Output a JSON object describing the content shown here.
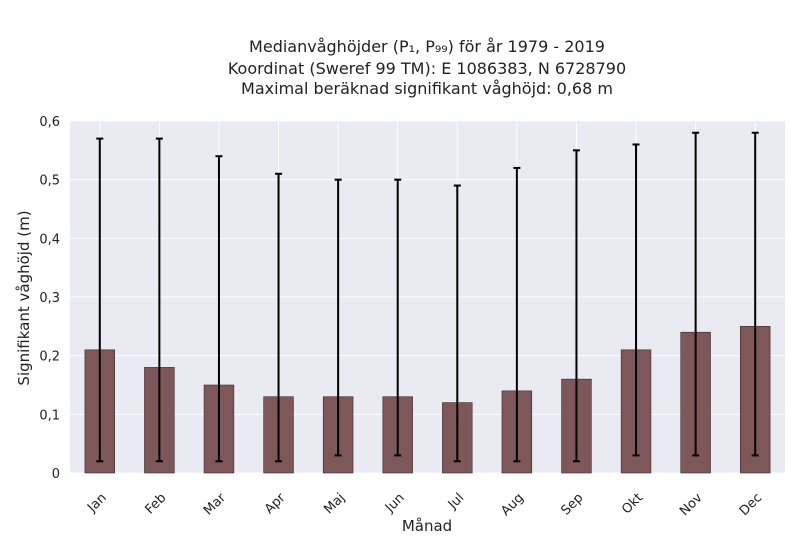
{
  "chart_data": {
    "type": "bar",
    "title_lines": [
      "Medianvåghöjder (P₁, P₉₉) för år 1979 - 2019",
      "Koordinat (Sweref 99 TM): E 1086383, N 6728790",
      "Maximal beräknad signifikant våghöjd: 0,68 m"
    ],
    "xlabel": "Månad",
    "ylabel": "Signifikant våghöjd (m)",
    "categories": [
      "Jan",
      "Feb",
      "Mar",
      "Apr",
      "Maj",
      "Jun",
      "Jul",
      "Aug",
      "Sep",
      "Okt",
      "Nov",
      "Dec"
    ],
    "values": [
      0.21,
      0.18,
      0.15,
      0.13,
      0.13,
      0.13,
      0.12,
      0.14,
      0.16,
      0.21,
      0.24,
      0.25
    ],
    "error_low": [
      0.02,
      0.02,
      0.02,
      0.02,
      0.03,
      0.03,
      0.02,
      0.02,
      0.02,
      0.03,
      0.03,
      0.03
    ],
    "error_high": [
      0.57,
      0.57,
      0.54,
      0.51,
      0.5,
      0.5,
      0.49,
      0.52,
      0.55,
      0.56,
      0.58,
      0.58
    ],
    "ylim": [
      0,
      0.6
    ],
    "yticks": [
      0,
      0.1,
      0.2,
      0.3,
      0.4,
      0.5,
      0.6
    ],
    "ytick_labels": [
      "0",
      "0,1",
      "0,2",
      "0,3",
      "0,4",
      "0,5",
      "0,6"
    ],
    "grid": true,
    "colors": {
      "bar": "#7d5759",
      "background": "#eaeaf2",
      "error": "#000000",
      "grid": "#ffffff"
    }
  }
}
